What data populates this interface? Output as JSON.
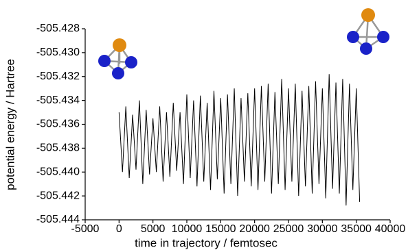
{
  "chart_data": {
    "type": "line",
    "x_label": "time in trajectory / femtosec",
    "y_label": "potential energy / Hartree",
    "xlim": [
      -5000,
      40000
    ],
    "xticks": [
      -5000,
      0,
      5000,
      10000,
      15000,
      20000,
      25000,
      30000,
      35000,
      40000
    ],
    "ylim": [
      -505.444,
      -505.428
    ],
    "yticks": [
      -505.444,
      -505.442,
      {
        "value": -505.44,
        "label": "-505.440"
      },
      -505.438,
      -505.436,
      -505.434,
      -505.432,
      {
        "value": -505.43,
        "label": "-505.430"
      },
      -505.428
    ],
    "x": [
      0,
      500,
      1000,
      1500,
      2000,
      2500,
      3000,
      3500,
      4000,
      4500,
      5000,
      5500,
      6000,
      6500,
      7000,
      7500,
      8000,
      8500,
      9000,
      9500,
      10000,
      10500,
      11000,
      11500,
      12000,
      12500,
      13000,
      13500,
      14000,
      14500,
      15000,
      15500,
      16000,
      16500,
      17000,
      17500,
      18000,
      18500,
      19000,
      19500,
      20000,
      20500,
      21000,
      21500,
      22000,
      22500,
      23000,
      23500,
      24000,
      24500,
      25000,
      25500,
      26000,
      26500,
      27000,
      27500,
      28000,
      28500,
      29000,
      29500,
      30000,
      30500,
      31000,
      31500,
      32000,
      32500,
      33000,
      33500,
      34000,
      34500,
      35000,
      35500
    ],
    "series": [
      {
        "color": "#000000",
        "values": [
          -505.435,
          -505.44,
          -505.4345,
          -505.4405,
          -505.4352,
          -505.4398,
          -505.434,
          -505.441,
          -505.4348,
          -505.4402,
          -505.4355,
          -505.44,
          -505.4345,
          -505.4408,
          -505.435,
          -505.4404,
          -505.4342,
          -505.4399,
          -505.435,
          -505.441,
          -505.4335,
          -505.4405,
          -505.434,
          -505.4412,
          -505.4336,
          -505.4408,
          -505.4342,
          -505.4415,
          -505.4332,
          -505.4406,
          -505.4338,
          -505.4418,
          -505.4335,
          -505.441,
          -505.433,
          -505.442,
          -505.4338,
          -505.4408,
          -505.4334,
          -505.4412,
          -505.433,
          -505.4415,
          -505.4328,
          -505.4408,
          -505.4326,
          -505.4418,
          -505.4333,
          -505.441,
          -505.4322,
          -505.4415,
          -505.433,
          -505.4408,
          -505.4326,
          -505.442,
          -505.4332,
          -505.4412,
          -505.4328,
          -505.4418,
          -505.4324,
          -505.441,
          -505.433,
          -505.4422,
          -505.4318,
          -505.4414,
          -505.4325,
          -505.4418,
          -505.4322,
          -505.4428,
          -505.4326,
          -505.4415,
          -505.433,
          -505.4425
        ]
      }
    ]
  }
}
